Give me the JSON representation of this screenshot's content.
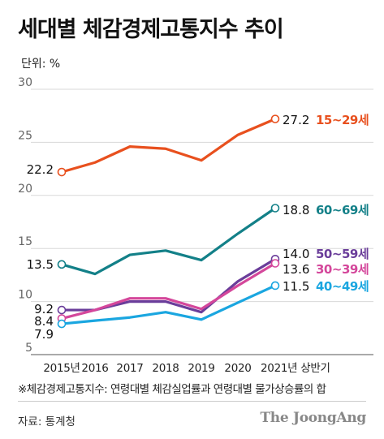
{
  "title": "세대별 체감경제고통지수 추이",
  "unit_label": "단위: %",
  "footnote": "※체감경제고통지수: 연령대별 체감실업률과 연령대별 물가상승률의 합",
  "source": "자료: 통계청",
  "brand": "The JoongAng",
  "chart_data": {
    "type": "line",
    "categories": [
      "2015년",
      "2016",
      "2017",
      "2018",
      "2019",
      "2020",
      "2021년 상반기"
    ],
    "ylim": [
      5,
      30
    ],
    "yticks": [
      5,
      10,
      15,
      20,
      25,
      30
    ],
    "grid": true,
    "series": [
      {
        "name": "15~29세",
        "color": "#e8501e",
        "values": [
          22.2,
          23.1,
          24.6,
          24.4,
          23.3,
          25.7,
          27.2
        ],
        "start_label": "22.2",
        "end_label": "27.2"
      },
      {
        "name": "60~69세",
        "color": "#138088",
        "values": [
          13.5,
          12.6,
          14.4,
          14.8,
          13.9,
          16.4,
          18.8
        ],
        "start_label": "13.5",
        "end_label": "18.8"
      },
      {
        "name": "50~59세",
        "color": "#6a3d9a",
        "values": [
          9.2,
          9.2,
          10.0,
          10.0,
          9.0,
          11.9,
          14.0
        ],
        "start_label": "9.2",
        "end_label": "14.0"
      },
      {
        "name": "30~39세",
        "color": "#d4479b",
        "values": [
          8.4,
          9.2,
          10.3,
          10.3,
          9.3,
          11.5,
          13.6
        ],
        "start_label": "8.4",
        "end_label": "13.6"
      },
      {
        "name": "40~49세",
        "color": "#1aa6e0",
        "values": [
          7.9,
          8.2,
          8.5,
          9.0,
          8.3,
          9.9,
          11.5
        ],
        "start_label": "7.9",
        "end_label": "11.5"
      }
    ]
  }
}
